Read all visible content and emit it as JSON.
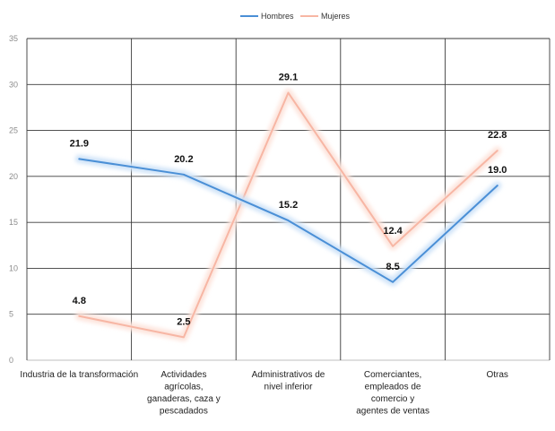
{
  "chart_data": {
    "type": "line",
    "categories": [
      [
        "Industria de la transformación"
      ],
      [
        "Actividades",
        "agrícolas,",
        "ganaderas, caza y",
        "pescadados"
      ],
      [
        "Administrativos de",
        "nivel inferior"
      ],
      [
        "Comerciantes,",
        "empleados de",
        "comercio y",
        "agentes de ventas"
      ],
      [
        "Otras"
      ]
    ],
    "series": [
      {
        "name": "Hombres",
        "color": "#4a8fd6",
        "glow": "#cfe3f8",
        "values": [
          21.9,
          20.2,
          15.2,
          8.5,
          19.0
        ],
        "labels": [
          "21.9",
          "20.2",
          "15.2",
          "8.5",
          "19.0"
        ]
      },
      {
        "name": "Mujeres",
        "color": "#f7b6a4",
        "glow": "#fde4dc",
        "values": [
          4.8,
          2.5,
          29.1,
          12.4,
          22.8
        ],
        "labels": [
          "4.8",
          "2.5",
          "29.1",
          "12.4",
          "22.8"
        ]
      }
    ],
    "yticks": [
      "0",
      "5",
      "10",
      "15",
      "20",
      "25",
      "30",
      "35"
    ],
    "ylim": [
      0,
      35
    ],
    "grid": true,
    "legend": "top-center",
    "title": "",
    "xlabel": "",
    "ylabel": ""
  }
}
